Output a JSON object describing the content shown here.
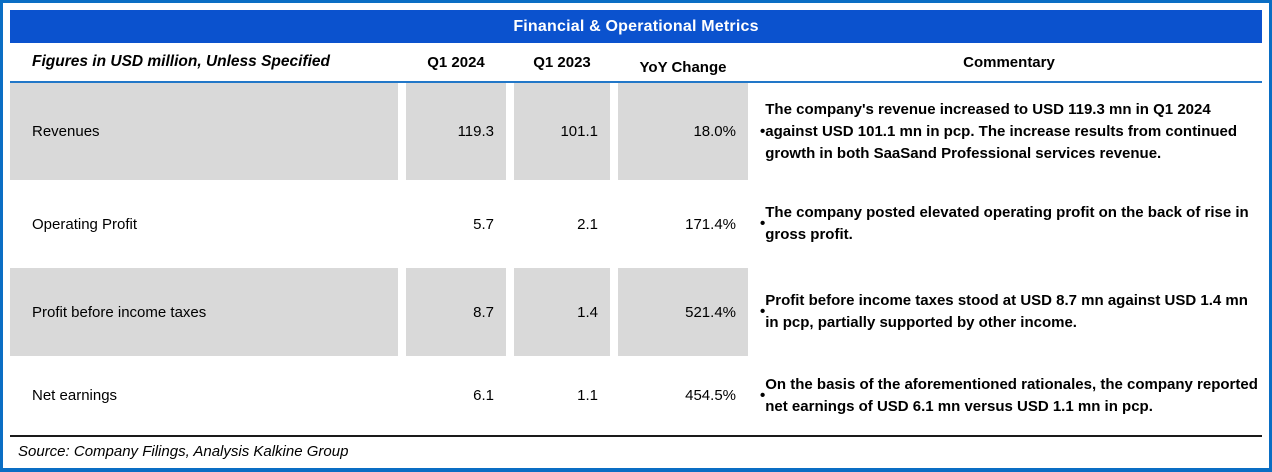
{
  "title": "Financial & Operational Metrics",
  "bullet": "•",
  "colors": {
    "frame_border": "#0A6EC4",
    "title_bar_bg": "#0B52CE",
    "title_text": "#FFFFFF",
    "header_underline": "#2277C8",
    "shaded_cell_bg": "#D9D9D9",
    "text": "#000000"
  },
  "table": {
    "header": {
      "label": "Figures in USD million, Unless Specified",
      "q1_2024": "Q1 2024",
      "q1_2023": "Q1 2023",
      "yoy": "YoY Change",
      "commentary": "Commentary"
    },
    "rows": [
      {
        "label": "Revenues",
        "q1_2024": "119.3",
        "q1_2023": "101.1",
        "yoy": "18.0%",
        "commentary": "The company's revenue increased to USD 119.3 mn in Q1 2024 against USD 101.1 mn in pcp. The increase results from continued growth in both SaaSand Professional services revenue."
      },
      {
        "label": "Operating Profit",
        "q1_2024": "5.7",
        "q1_2023": "2.1",
        "yoy": "171.4%",
        "commentary": "The company posted elevated operating profit on the back of rise in gross profit."
      },
      {
        "label": "Profit before income taxes",
        "q1_2024": "8.7",
        "q1_2023": "1.4",
        "yoy": "521.4%",
        "commentary": "Profit before income taxes stood at USD 8.7 mn against USD 1.4 mn in pcp, partially supported by other income."
      },
      {
        "label": "Net earnings",
        "q1_2024": "6.1",
        "q1_2023": "1.1",
        "yoy": "454.5%",
        "commentary": "On the basis of the aforementioned rationales, the company reported net earnings of USD 6.1 mn versus USD 1.1 mn in pcp."
      }
    ]
  },
  "footer": {
    "source": "Source: Company Filings, Analysis Kalkine Group"
  }
}
